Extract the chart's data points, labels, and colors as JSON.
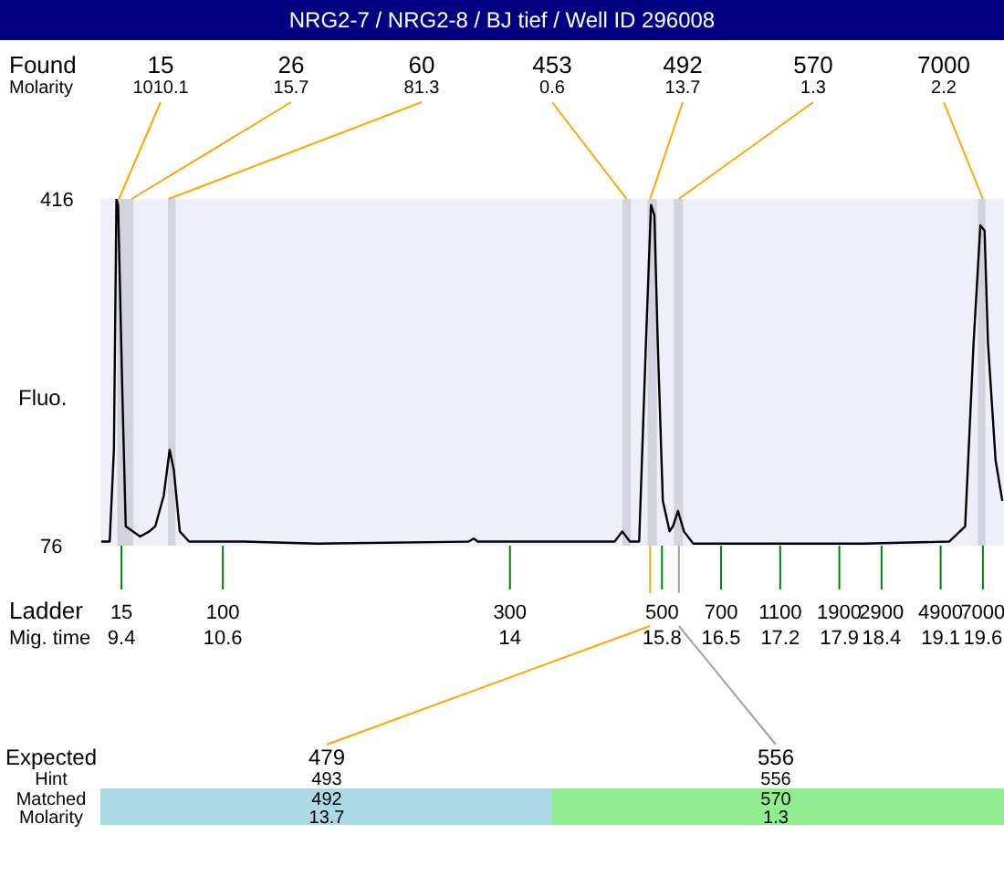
{
  "chart_data": {
    "type": "line",
    "title": "NRG2-7 / NRG2-8 / BJ tief / Well ID 296008",
    "ylabel": "Fluo.",
    "x": [
      9.16,
      9.26,
      9.31,
      9.34,
      9.36,
      9.41,
      9.45,
      9.62,
      9.73,
      9.8,
      9.9,
      9.97,
      10.02,
      10.09,
      10.2,
      10.85,
      11.71,
      13.51,
      13.57,
      13.62,
      15.24,
      15.33,
      15.42,
      15.53,
      15.61,
      15.67,
      15.71,
      15.75,
      15.81,
      15.89,
      15.93,
      15.99,
      16.06,
      16.17,
      18.19,
      19.2,
      19.39,
      19.49,
      19.57,
      19.62,
      19.66,
      19.75,
      19.83
    ],
    "series": [
      {
        "color": "#000000",
        "values": [
          80,
          80,
          170,
          416,
          410,
          225,
          95,
          85,
          90,
          95,
          125,
          170,
          150,
          90,
          80,
          80,
          78,
          80,
          83,
          80,
          80,
          90,
          80,
          80,
          275,
          410,
          400,
          275,
          120,
          90,
          95,
          110,
          90,
          78,
          78,
          80,
          95,
          275,
          390,
          385,
          275,
          160,
          120
        ]
      }
    ],
    "xlim": [
      9.15,
      19.85
    ],
    "xticks": [
      9.4,
      10.6,
      14,
      15.8,
      16.5,
      17.2,
      17.9,
      18.4,
      19.1,
      19.6
    ],
    "ylim": [
      76,
      416
    ],
    "yticks": [
      76,
      416
    ],
    "marker": "none",
    "line_style": "solid",
    "bands": [
      {
        "axis": "x",
        "from": 9.35,
        "to": 9.54,
        "color": "#d3d3e0"
      },
      {
        "axis": "x",
        "from": 9.95,
        "to": 10.04,
        "color": "#d3d3e0"
      },
      {
        "axis": "x",
        "from": 15.33,
        "to": 15.43,
        "color": "#d3d3e0"
      },
      {
        "axis": "x",
        "from": 15.63,
        "to": 15.74,
        "color": "#d3d3e0"
      },
      {
        "axis": "x",
        "from": 15.94,
        "to": 16.05,
        "color": "#d3d3e0"
      },
      {
        "axis": "x",
        "from": 19.54,
        "to": 19.63,
        "color": "#d3d3e0"
      }
    ],
    "annotations": [
      "Found",
      "Molarity",
      "Ladder",
      "Mig. time",
      "Expected",
      "Hint",
      "Matched",
      "Molarity",
      "479",
      "493",
      "492",
      "13.7",
      "556",
      "556",
      "570",
      "1.3",
      "1010.1",
      "15.7",
      "81.3",
      "0.6",
      "13.7",
      "1.3",
      "2.2",
      "15",
      "100",
      "300",
      "500",
      "700",
      "1100",
      "1900",
      "2900",
      "4900",
      "7000",
      {
        "text": "15",
        "x": 9.37,
        "y": 416
      },
      {
        "text": "26",
        "x": 9.52,
        "y": 416
      },
      {
        "text": "60",
        "x": 9.96,
        "y": 416
      },
      {
        "text": "453",
        "x": 15.38,
        "y": 416
      },
      {
        "text": "492",
        "x": 15.66,
        "y": 416
      },
      {
        "text": "570",
        "x": 16.0,
        "y": 416
      },
      {
        "text": "7000",
        "x": 19.6,
        "y": 416
      }
    ]
  }
}
